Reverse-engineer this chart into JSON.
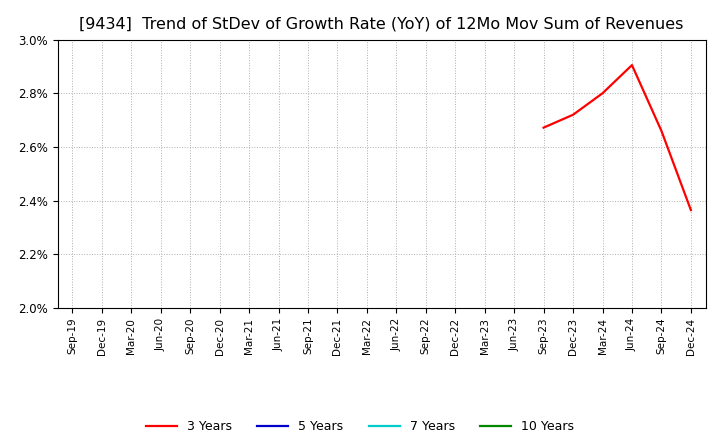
{
  "title": "[9434]  Trend of StDev of Growth Rate (YoY) of 12Mo Mov Sum of Revenues",
  "title_fontsize": 11.5,
  "title_fontweight": "normal",
  "background_color": "#ffffff",
  "plot_bg_color": "#ffffff",
  "ylim": [
    0.02,
    0.03
  ],
  "yticks": [
    0.02,
    0.022,
    0.024,
    0.026,
    0.028,
    0.03
  ],
  "ytick_labels": [
    "2.0%",
    "2.2%",
    "2.4%",
    "2.6%",
    "2.8%",
    "3.0%"
  ],
  "x_labels": [
    "Sep-19",
    "Dec-19",
    "Mar-20",
    "Jun-20",
    "Sep-20",
    "Dec-20",
    "Mar-21",
    "Jun-21",
    "Sep-21",
    "Dec-21",
    "Mar-22",
    "Jun-22",
    "Sep-22",
    "Dec-22",
    "Mar-23",
    "Jun-23",
    "Sep-23",
    "Dec-23",
    "Mar-24",
    "Jun-24",
    "Sep-24",
    "Dec-24"
  ],
  "series": {
    "3 Years": {
      "color": "#ff0000",
      "linewidth": 1.6,
      "data_x": [
        "Sep-23",
        "Dec-23",
        "Mar-24",
        "Jun-24",
        "Sep-24",
        "Dec-24"
      ],
      "data_y": [
        0.02672,
        0.0272,
        0.028,
        0.02905,
        0.0266,
        0.02365
      ]
    },
    "5 Years": {
      "color": "#0000cc",
      "linewidth": 1.6,
      "data_x": [],
      "data_y": []
    },
    "7 Years": {
      "color": "#00cccc",
      "linewidth": 1.6,
      "data_x": [],
      "data_y": []
    },
    "10 Years": {
      "color": "#008800",
      "linewidth": 1.6,
      "data_x": [],
      "data_y": []
    }
  },
  "legend_order": [
    "3 Years",
    "5 Years",
    "7 Years",
    "10 Years"
  ],
  "grid_color": "#b0b0b0",
  "grid_linestyle": ":"
}
